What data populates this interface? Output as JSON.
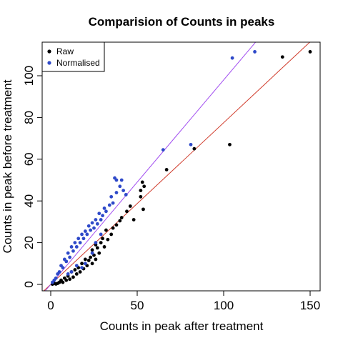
{
  "chart_data": {
    "type": "scatter",
    "title": "Comparision of Counts in peaks",
    "xlabel": "Counts in peak after treatment",
    "ylabel": "Counts in peak before treatment",
    "xlim": [
      -5,
      155
    ],
    "ylim": [
      -3,
      115
    ],
    "xticks": [
      "0",
      "50",
      "100",
      "150"
    ],
    "yticks": [
      "0",
      "20",
      "40",
      "60",
      "80",
      "100"
    ],
    "legend_position": "top-left",
    "grid": false,
    "colors": {
      "raw": "#000000",
      "normalised": "#2e49c9",
      "raw_fit": "#d03a2a",
      "normalised_fit": "#a14df0"
    },
    "series": [
      {
        "name": "Raw",
        "color": "#000000",
        "points": [
          [
            150,
            111.5
          ],
          [
            134,
            109
          ],
          [
            103.5,
            67
          ],
          [
            83,
            65
          ],
          [
            67,
            55
          ],
          [
            54,
            47
          ],
          [
            53,
            49
          ],
          [
            52,
            45
          ],
          [
            52,
            42
          ],
          [
            53.5,
            36
          ],
          [
            48,
            31
          ],
          [
            46,
            37.5
          ],
          [
            44,
            35
          ],
          [
            41,
            32
          ],
          [
            40,
            30.5
          ],
          [
            38,
            28.5
          ],
          [
            36,
            27
          ],
          [
            35,
            24
          ],
          [
            33,
            21.5
          ],
          [
            32,
            26
          ],
          [
            31,
            18
          ],
          [
            30,
            22
          ],
          [
            29,
            20
          ],
          [
            28,
            15
          ],
          [
            27,
            17.5
          ],
          [
            26,
            19
          ],
          [
            26,
            12
          ],
          [
            25,
            14
          ],
          [
            24,
            16.5
          ],
          [
            24,
            10
          ],
          [
            23,
            13
          ],
          [
            22,
            11.5
          ],
          [
            21,
            9
          ],
          [
            20,
            12
          ],
          [
            19,
            7.5
          ],
          [
            18,
            10
          ],
          [
            17,
            6
          ],
          [
            16,
            8
          ],
          [
            15,
            5
          ],
          [
            14,
            7
          ],
          [
            13,
            3.5
          ],
          [
            12,
            6
          ],
          [
            11,
            2.5
          ],
          [
            10,
            4
          ],
          [
            9,
            2
          ],
          [
            8,
            3
          ],
          [
            7,
            1
          ],
          [
            6,
            2
          ],
          [
            5,
            1
          ],
          [
            4,
            0.5
          ],
          [
            3,
            0.2
          ],
          [
            2,
            0.5
          ],
          [
            1,
            0.1
          ]
        ]
      },
      {
        "name": "Normalised",
        "color": "#2e49c9",
        "points": [
          [
            118,
            111.5
          ],
          [
            105,
            108.5
          ],
          [
            81,
            67
          ],
          [
            65,
            64.5
          ],
          [
            37,
            51
          ],
          [
            38,
            50
          ],
          [
            41,
            50
          ],
          [
            40,
            47
          ],
          [
            42,
            45
          ],
          [
            43.5,
            43
          ],
          [
            38,
            44
          ],
          [
            35,
            42
          ],
          [
            36,
            39
          ],
          [
            34,
            38
          ],
          [
            32,
            35
          ],
          [
            31,
            36.5
          ],
          [
            30,
            33
          ],
          [
            29,
            31
          ],
          [
            28,
            34
          ],
          [
            27,
            29
          ],
          [
            26,
            31
          ],
          [
            25,
            27
          ],
          [
            24,
            29.5
          ],
          [
            23,
            26
          ],
          [
            22,
            28
          ],
          [
            21,
            24
          ],
          [
            20,
            25.5
          ],
          [
            19,
            22
          ],
          [
            18,
            24
          ],
          [
            17,
            20
          ],
          [
            16,
            22
          ],
          [
            15,
            18
          ],
          [
            14,
            20
          ],
          [
            13,
            16
          ],
          [
            12,
            18
          ],
          [
            11,
            13
          ],
          [
            10,
            15
          ],
          [
            9,
            11
          ],
          [
            8,
            12
          ],
          [
            7,
            8
          ],
          [
            6,
            9
          ],
          [
            5,
            6
          ],
          [
            4,
            5
          ],
          [
            3,
            3
          ],
          [
            2,
            2
          ],
          [
            1,
            1
          ],
          [
            20,
            10
          ],
          [
            18,
            8
          ],
          [
            12,
            6
          ],
          [
            10,
            5
          ],
          [
            15,
            9
          ],
          [
            24,
            15
          ],
          [
            26,
            20
          ],
          [
            29,
            24
          ]
        ]
      }
    ],
    "lines": [
      {
        "name": "raw_fit",
        "color": "#d03a2a",
        "intercept": 0,
        "slope": 0.775
      },
      {
        "name": "normalised_fit",
        "color": "#a14df0",
        "intercept": 0,
        "slope": 0.98
      }
    ]
  }
}
